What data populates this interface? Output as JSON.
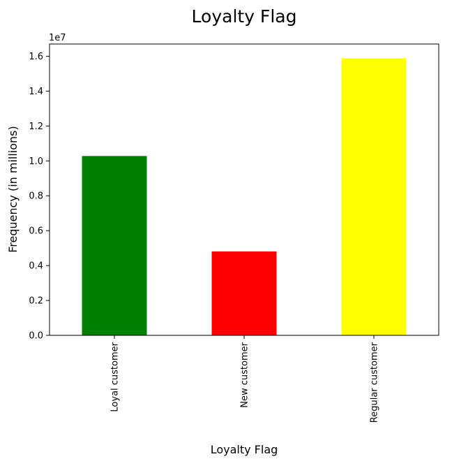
{
  "chart_data": {
    "type": "bar",
    "title": "Loyalty Flag",
    "xlabel": "Loyalty Flag",
    "ylabel": "Frequency (in millions)",
    "offset_text": "1e7",
    "categories": [
      "Loyal customer",
      "New customer",
      "Regular customer"
    ],
    "values": [
      10280000,
      4810000,
      15880000
    ],
    "colors": [
      "#008000",
      "#ff0000",
      "#ffff00"
    ],
    "ylim": [
      0,
      16700000
    ],
    "yticks": [
      0,
      2000000,
      4000000,
      6000000,
      8000000,
      10000000,
      12000000,
      14000000,
      16000000
    ],
    "ytick_labels": [
      "0.0",
      "0.2",
      "0.4",
      "0.6",
      "0.8",
      "1.0",
      "1.2",
      "1.4",
      "1.6"
    ],
    "grid": false,
    "legend": "none"
  }
}
